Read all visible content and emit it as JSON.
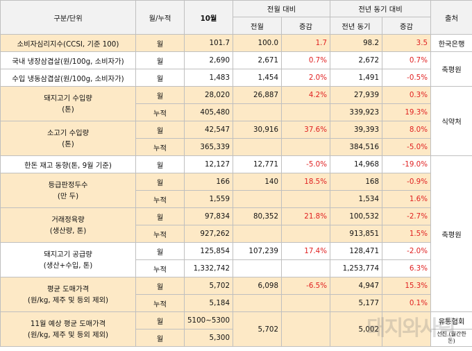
{
  "header": {
    "category": "구분/단위",
    "period": "월/누적",
    "current": "10월",
    "mom_group": "전월 대비",
    "yoy_group": "전년 동기 대비",
    "source": "출처",
    "mom_prev": "전월",
    "mom_change": "증감",
    "yoy_prev": "전년 동기",
    "yoy_change": "증감"
  },
  "rows": {
    "ccsi": {
      "label": "소비자심리지수(CCSI, 기준 100)",
      "period": "월",
      "current": "101.7",
      "prev": "100.0",
      "chg": "1.7",
      "yprev": "98.2",
      "ychg": "3.5",
      "source": "한국은행"
    },
    "domestic": {
      "label": "국내 냉장삼겹살(원/100g, 소비자가)",
      "period": "월",
      "current": "2,690",
      "prev": "2,671",
      "chg": "0.7%",
      "yprev": "2,672",
      "ychg": "0.7%"
    },
    "import": {
      "label": "수입 냉동삼겹살(원/100g, 소비자가)",
      "period": "월",
      "current": "1,483",
      "prev": "1,454",
      "chg": "2.0%",
      "yprev": "1,491",
      "ychg": "-0.5%"
    },
    "source_mid": "축평원",
    "pork_import": {
      "label1": "돼지고기 수입량",
      "label2": "(톤)",
      "m_period": "월",
      "m_current": "28,020",
      "m_prev": "26,887",
      "m_chg": "4.2%",
      "m_yprev": "27,939",
      "m_ychg": "0.3%",
      "c_period": "누적",
      "c_current": "405,480",
      "c_yprev": "339,923",
      "c_ychg": "19.3%"
    },
    "beef_import": {
      "label1": "소고기 수입량",
      "label2": "(톤)",
      "m_period": "월",
      "m_current": "42,547",
      "m_prev": "30,916",
      "m_chg": "37.6%",
      "m_yprev": "39,393",
      "m_ychg": "8.0%",
      "c_period": "누적",
      "c_current": "365,339",
      "c_yprev": "384,516",
      "c_ychg": "-5.0%"
    },
    "source_food": "식약처",
    "hanwoo_stock": {
      "label": "한돈 재고 동향(톤, 9월 기준)",
      "period": "월",
      "current": "12,127",
      "prev": "12,771",
      "chg": "-5.0%",
      "yprev": "14,968",
      "ychg": "-19.0%"
    },
    "grading": {
      "label1": "등급판정두수",
      "label2": "(만 두)",
      "m_period": "월",
      "m_current": "166",
      "m_prev": "140",
      "m_chg": "18.5%",
      "m_yprev": "168",
      "m_ychg": "-0.9%",
      "c_period": "누적",
      "c_current": "1,559",
      "c_yprev": "1,534",
      "c_ychg": "1.6%"
    },
    "trade_meat": {
      "label1": "거래정육량",
      "label2": "(생산량, 톤)",
      "m_period": "월",
      "m_current": "97,834",
      "m_prev": "80,352",
      "m_chg": "21.8%",
      "m_yprev": "100,532",
      "m_ychg": "-2.7%",
      "c_period": "누적",
      "c_current": "927,262",
      "c_yprev": "913,851",
      "c_ychg": "1.5%"
    },
    "source_lower": "축평원",
    "pork_supply": {
      "label1": "돼지고기 공급량",
      "label2": "(생산+수입, 톤)",
      "m_period": "월",
      "m_current": "125,854",
      "m_prev": "107,239",
      "m_chg": "17.4%",
      "m_yprev": "128,471",
      "m_ychg": "-2.0%",
      "c_period": "누적",
      "c_current": "1,332,742",
      "c_yprev": "1,253,774",
      "c_ychg": "6.3%"
    },
    "avg_price": {
      "label1": "평균 도매가격",
      "label2": "(원/kg, 제주 및 등외 제외)",
      "m_period": "월",
      "m_current": "5,702",
      "m_prev": "6,098",
      "m_chg": "-6.5%",
      "m_yprev": "4,947",
      "m_ychg": "15.3%",
      "c_period": "누적",
      "c_current": "5,184",
      "c_yprev": "5,177",
      "c_ychg": "0.1%"
    },
    "nov_forecast": {
      "label1": "11월 예상 평균 도매가격",
      "label2": "(원/kg, 제주 및 등외 제외)",
      "r1_period": "월",
      "r1_current": "5100~5300",
      "r2_period": "월",
      "r2_current": "5,300",
      "prev": "5,702",
      "yprev": "5,002",
      "source1": "유통협회",
      "source2": "선진\n(월간한돈)"
    }
  },
  "watermark": "돼지와사람"
}
